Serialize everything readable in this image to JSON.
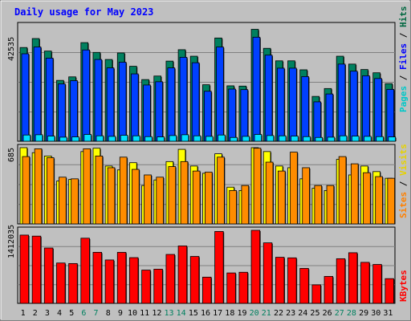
{
  "title": "Daily usage for May 2023",
  "panels": {
    "top": {
      "ymax_label": "42535",
      "legend": [
        {
          "text": "Pages",
          "color": "#00c8c8"
        },
        {
          "text": " / ",
          "color": "#000000"
        },
        {
          "text": "Files",
          "color": "#0000ff"
        },
        {
          "text": " / ",
          "color": "#000000"
        },
        {
          "text": "Hits",
          "color": "#006840"
        }
      ]
    },
    "middle": {
      "ymax_label": "685",
      "legend": [
        {
          "text": "Sites",
          "color": "#ff8000"
        },
        {
          "text": " / ",
          "color": "#000000"
        },
        {
          "text": "Visits",
          "color": "#e6d200"
        }
      ]
    },
    "bottom": {
      "ymax_label": "1412035",
      "legend": [
        {
          "text": "KBytes",
          "color": "#ff0000"
        }
      ]
    }
  },
  "colors": {
    "background": "#c0c0c0",
    "hits": "#00805f",
    "files": "#0040ff",
    "pages": "#00e0ff",
    "visits": "#ffff00",
    "sites": "#ff8c00",
    "kbytes": "#ff0000",
    "title": "#0000ff",
    "weekend_day": "#00805f"
  },
  "chart_data": {
    "type": "bar",
    "title": "Daily usage for May 2023",
    "categories": [
      "1",
      "2",
      "3",
      "4",
      "5",
      "6",
      "7",
      "8",
      "9",
      "10",
      "11",
      "12",
      "13",
      "14",
      "15",
      "16",
      "17",
      "18",
      "19",
      "20",
      "21",
      "22",
      "23",
      "24",
      "25",
      "26",
      "27",
      "28",
      "29",
      "30",
      "31"
    ],
    "weekend_days": [
      "6",
      "7",
      "13",
      "14",
      "20",
      "21",
      "27",
      "28"
    ],
    "charts": [
      {
        "panel": "top",
        "ylim": [
          0,
          42535
        ],
        "series": [
          {
            "name": "Hits",
            "values": [
              34500,
              37800,
              33200,
              22400,
              23700,
              36300,
              32700,
              30100,
              32500,
              27600,
              22700,
              24000,
              29500,
              33700,
              31300,
              20800,
              38000,
              20400,
              20300,
              41200,
              34200,
              29600,
              29600,
              26300,
              16500,
              19400,
              31300,
              28400,
              26400,
              25200,
              21200
            ]
          },
          {
            "name": "Files",
            "values": [
              32200,
              34700,
              30600,
              21100,
              22300,
              33600,
              30100,
              27000,
              29100,
              24800,
              20700,
              21900,
              27000,
              30900,
              28900,
              18400,
              34700,
              19200,
              19000,
              38300,
              31700,
              26900,
              26900,
              23800,
              14500,
              17400,
              28400,
              25800,
              24100,
              23100,
              19100
            ]
          },
          {
            "name": "Pages",
            "values": [
              2300,
              2400,
              1900,
              1500,
              1600,
              2500,
              2000,
              1800,
              2200,
              2000,
              1700,
              1600,
              2100,
              2400,
              2000,
              1800,
              2300,
              1400,
              1800,
              2500,
              2100,
              2000,
              1900,
              1700,
              1400,
              1500,
              2000,
              1900,
              1800,
              1700,
              1600
            ]
          }
        ]
      },
      {
        "panel": "middle",
        "ylim": [
          0,
          685
        ],
        "series": [
          {
            "name": "Visits",
            "values": [
              685,
              640,
              610,
              385,
              400,
              650,
              680,
              520,
              485,
              550,
              345,
              395,
              560,
              670,
              520,
              455,
              630,
              330,
              300,
              695,
              650,
              520,
              505,
              405,
              320,
              300,
              580,
              440,
              520,
              470,
              410
            ]
          },
          {
            "name": "Sites",
            "values": [
              605,
              675,
              595,
              420,
              405,
              675,
              610,
              505,
              600,
              490,
              440,
              420,
              515,
              560,
              475,
              465,
              600,
              300,
              345,
              680,
              555,
              475,
              645,
              505,
              345,
              345,
              605,
              540,
              460,
              425,
              410
            ]
          }
        ]
      },
      {
        "panel": "bottom",
        "ylim": [
          0,
          1412035
        ],
        "series": [
          {
            "name": "KBytes",
            "values": [
              1320000,
              1300000,
              1070000,
              780000,
              770000,
              1260000,
              987000,
              839000,
              986000,
              884000,
              643000,
              661000,
              946000,
              1110000,
              907000,
              507000,
              1390000,
              588000,
              601000,
              1440000,
              1170000,
              891000,
              880000,
              676000,
              358000,
              521000,
              863000,
              979000,
              793000,
              752000,
              478000
            ]
          }
        ]
      }
    ]
  }
}
